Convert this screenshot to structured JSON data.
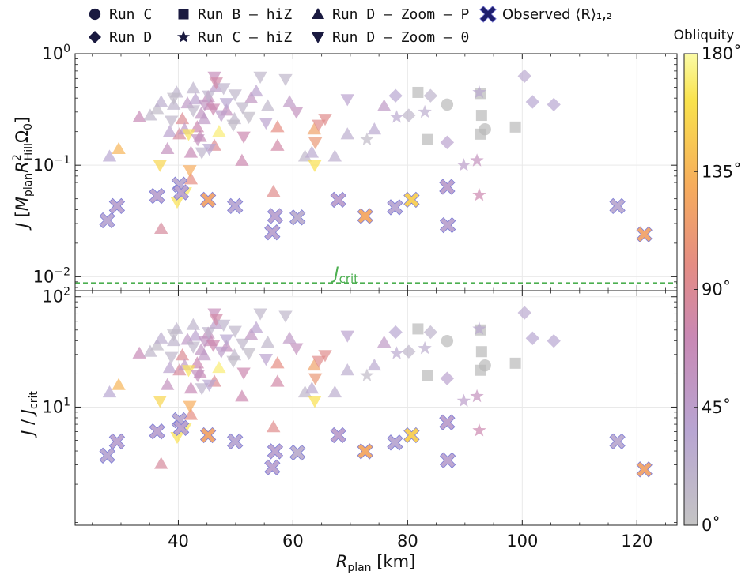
{
  "chart_data": {
    "type": "scatter",
    "legend": {
      "placement": "top",
      "entries": [
        {
          "marker": "circle",
          "label": "Run C",
          "code": true
        },
        {
          "marker": "square",
          "label": "Run B – hiZ",
          "code": true
        },
        {
          "marker": "triangle-up",
          "label": "Run D – Zoom – P",
          "code": true
        },
        {
          "marker": "x-thick",
          "label": "Observed ⟨R⟩₁,₂",
          "code": false
        },
        {
          "marker": "diamond",
          "label": "Run D",
          "code": true
        },
        {
          "marker": "star",
          "label": "Run C – hiZ",
          "code": true
        },
        {
          "marker": "triangle-down",
          "label": "Run D – Zoom – 0",
          "code": true
        }
      ]
    },
    "xaxis": {
      "label": "R_plan [km]",
      "range": [
        22,
        127
      ],
      "ticks": [
        40,
        60,
        80,
        100,
        120
      ]
    },
    "panels": [
      {
        "name": "J",
        "ylabel": "J [M_plan R²_Hill Ω₀]",
        "yscale": "log",
        "ylim": [
          0.0075,
          1.0
        ],
        "ytick_labels": [
          {
            "value": 1.0,
            "base": "10",
            "exp": "0"
          },
          {
            "value": 0.1,
            "base": "10",
            "exp": "−1"
          },
          {
            "value": 0.01,
            "base": "10",
            "exp": "−2"
          }
        ],
        "hline": {
          "y": 0.0088,
          "label": "J_crit",
          "label_x": 72,
          "color": "#4CAF50"
        }
      },
      {
        "name": "J/Jcrit",
        "ylabel": "J / J_crit",
        "yscale": "log",
        "ylim": [
          0.85,
          113.6
        ],
        "ytick_labels": [
          {
            "value": 100,
            "base": "10",
            "exp": "2"
          },
          {
            "value": 10,
            "base": "10",
            "exp": "1"
          }
        ],
        "transform": "J / 0.0088"
      }
    ],
    "colorbar": {
      "label": "Obliquity",
      "range": [
        0,
        180
      ],
      "ticks": [
        "0˚",
        "45˚",
        "90˚",
        "135˚",
        "180˚"
      ],
      "tick_values": [
        0,
        45,
        90,
        135,
        180
      ],
      "colormap": [
        "#c4c4c4",
        "#b8a5d2",
        "#c988b4",
        "#e48c84",
        "#f6ac5c",
        "#f9e24c",
        "#fbfba6"
      ]
    },
    "series": [
      {
        "name": "Run C",
        "marker": "circle",
        "points": [
          [
            86.9,
            0.35,
            0
          ],
          [
            93.5,
            0.21,
            0
          ]
        ]
      },
      {
        "name": "Run B – hiZ",
        "marker": "square",
        "points": [
          [
            81.8,
            0.45,
            0
          ],
          [
            83.5,
            0.17,
            0
          ],
          [
            92.7,
            0.44,
            0
          ],
          [
            92.9,
            0.28,
            0
          ],
          [
            92.7,
            0.19,
            0
          ],
          [
            98.8,
            0.22,
            0
          ]
        ]
      },
      {
        "name": "Run D",
        "marker": "diamond",
        "points": [
          [
            77.9,
            0.42,
            35
          ],
          [
            80.2,
            0.28,
            15
          ],
          [
            84.0,
            0.42,
            20
          ],
          [
            86.9,
            0.16,
            40
          ],
          [
            100.4,
            0.63,
            30
          ],
          [
            101.8,
            0.37,
            35
          ],
          [
            105.5,
            0.35,
            35
          ]
        ]
      },
      {
        "name": "Run C – hiZ",
        "marker": "star",
        "points": [
          [
            72.9,
            0.17,
            10
          ],
          [
            78.1,
            0.27,
            30
          ],
          [
            83.0,
            0.3,
            25
          ],
          [
            89.8,
            0.1,
            45
          ],
          [
            92.1,
            0.11,
            60
          ],
          [
            92.5,
            0.45,
            30
          ],
          [
            92.5,
            0.054,
            75
          ]
        ]
      },
      {
        "name": "Run D – Zoom – P",
        "marker": "triangle-up",
        "points": [
          [
            28.0,
            0.12,
            35
          ],
          [
            29.6,
            0.14,
            135
          ],
          [
            33.2,
            0.27,
            70
          ],
          [
            35.1,
            0.28,
            15
          ],
          [
            36.3,
            0.32,
            10
          ],
          [
            37.0,
            0.37,
            25
          ],
          [
            37.0,
            0.027,
            85
          ],
          [
            38.1,
            0.14,
            60
          ],
          [
            38.5,
            0.2,
            40
          ],
          [
            39.2,
            0.35,
            20
          ],
          [
            39.7,
            0.45,
            20
          ],
          [
            40.7,
            0.26,
            90
          ],
          [
            40.2,
            0.19,
            85
          ],
          [
            41.1,
            0.21,
            50
          ],
          [
            41.6,
            0.36,
            50
          ],
          [
            42.2,
            0.075,
            100
          ],
          [
            42.2,
            0.13,
            70
          ],
          [
            42.6,
            0.49,
            20
          ],
          [
            43.0,
            0.39,
            40
          ],
          [
            43.3,
            0.22,
            75
          ],
          [
            43.8,
            0.18,
            70
          ],
          [
            44.0,
            0.29,
            55
          ],
          [
            44.5,
            0.26,
            50
          ],
          [
            45.2,
            0.41,
            60
          ],
          [
            45.6,
            0.35,
            70
          ],
          [
            46.3,
            0.15,
            90
          ],
          [
            46.5,
            0.5,
            45
          ],
          [
            47.1,
            0.2,
            170
          ],
          [
            48.4,
            0.31,
            60
          ],
          [
            49.8,
            0.26,
            15
          ],
          [
            52.7,
            0.4,
            55
          ],
          [
            51.1,
            0.11,
            75
          ],
          [
            53.6,
            0.46,
            40
          ],
          [
            55.6,
            0.34,
            15
          ],
          [
            57.3,
            0.15,
            80
          ],
          [
            57.3,
            0.22,
            100
          ],
          [
            59.4,
            0.37,
            50
          ],
          [
            56.6,
            0.058,
            95
          ],
          [
            62.1,
            0.12,
            15
          ],
          [
            63.3,
            0.13,
            30
          ],
          [
            63.7,
            0.21,
            120
          ],
          [
            67.3,
            0.12,
            25
          ],
          [
            69.5,
            0.19,
            25
          ],
          [
            74.2,
            0.21,
            30
          ],
          [
            75.9,
            0.34,
            50
          ]
        ]
      },
      {
        "name": "Run D – Zoom – 0",
        "marker": "triangle-down",
        "points": [
          [
            36.8,
            0.1,
            155
          ],
          [
            38.8,
            0.25,
            15
          ],
          [
            39.2,
            0.4,
            10
          ],
          [
            39.8,
            0.047,
            160
          ],
          [
            41.2,
            0.057,
            165
          ],
          [
            42.0,
            0.09,
            130
          ],
          [
            41.8,
            0.19,
            165
          ],
          [
            42.6,
            0.31,
            15
          ],
          [
            43.4,
            0.17,
            60
          ],
          [
            44.1,
            0.13,
            20
          ],
          [
            44.6,
            0.35,
            55
          ],
          [
            45.4,
            0.14,
            35
          ],
          [
            45.3,
            0.42,
            20
          ],
          [
            46.1,
            0.32,
            75
          ],
          [
            46.3,
            0.62,
            65
          ],
          [
            46.6,
            0.55,
            80
          ],
          [
            47.5,
            0.28,
            45
          ],
          [
            47.9,
            0.49,
            20
          ],
          [
            48.4,
            0.36,
            35
          ],
          [
            49.6,
            0.23,
            10
          ],
          [
            49.9,
            0.43,
            15
          ],
          [
            51.2,
            0.33,
            15
          ],
          [
            51.4,
            0.18,
            75
          ],
          [
            52.3,
            0.27,
            10
          ],
          [
            54.3,
            0.62,
            15
          ],
          [
            55.3,
            0.24,
            40
          ],
          [
            58.7,
            0.59,
            15
          ],
          [
            60.6,
            0.3,
            60
          ],
          [
            63.8,
            0.1,
            160
          ],
          [
            63.9,
            0.16,
            110
          ],
          [
            64.5,
            0.23,
            95
          ],
          [
            65.6,
            0.26,
            95
          ],
          [
            69.5,
            0.39,
            40
          ]
        ]
      },
      {
        "name": "Observed ⟨R⟩₁,₂",
        "marker": "x-thick",
        "points": [
          [
            27.6,
            0.032,
            35
          ],
          [
            29.3,
            0.043,
            40
          ],
          [
            36.3,
            0.053,
            40
          ],
          [
            40.2,
            0.067,
            30
          ],
          [
            40.5,
            0.057,
            40
          ],
          [
            45.2,
            0.049,
            120
          ],
          [
            49.9,
            0.043,
            35
          ],
          [
            56.4,
            0.025,
            40
          ],
          [
            56.9,
            0.035,
            40
          ],
          [
            60.8,
            0.034,
            25
          ],
          [
            67.9,
            0.049,
            45
          ],
          [
            72.6,
            0.035,
            125
          ],
          [
            77.8,
            0.042,
            35
          ],
          [
            80.7,
            0.049,
            150
          ],
          [
            86.9,
            0.064,
            45
          ],
          [
            87.0,
            0.029,
            40
          ],
          [
            116.6,
            0.043,
            30
          ],
          [
            121.3,
            0.024,
            120
          ]
        ]
      }
    ]
  }
}
